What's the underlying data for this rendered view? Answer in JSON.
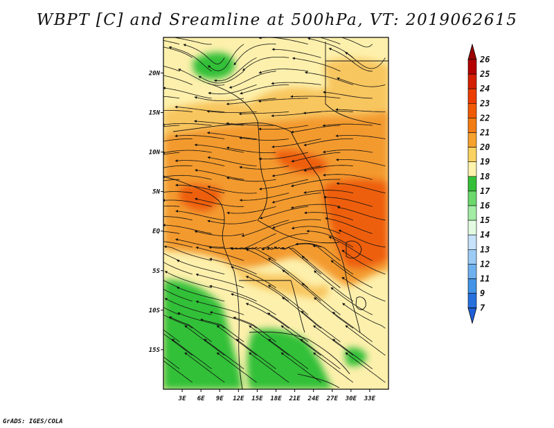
{
  "title": "WBPT [C] and Sreamline at 500hPa, VT: 2019062615",
  "credit": "GrADS: IGES/COLA",
  "map": {
    "lon_range": [
      0,
      36
    ],
    "lat_range": [
      -20,
      24.5
    ],
    "lon_ticks": [
      "3E",
      "6E",
      "9E",
      "12E",
      "15E",
      "18E",
      "21E",
      "24E",
      "27E",
      "30E",
      "33E"
    ],
    "lat_ticks": [
      "20N",
      "15N",
      "10N",
      "5N",
      "EQ",
      "5S",
      "10S",
      "15S"
    ],
    "fill_field": "WBPT [C]",
    "overlay": "Streamline",
    "level": "500hPa",
    "valid_time": "2019062615"
  },
  "colorbar": {
    "labels": [
      "26",
      "25",
      "24",
      "23",
      "22",
      "21",
      "20",
      "19",
      "18",
      "17",
      "16",
      "15",
      "14",
      "13",
      "12",
      "11",
      "9",
      "7"
    ],
    "colors": [
      "#b50000",
      "#d42000",
      "#ec3c00",
      "#f15a05",
      "#f37c12",
      "#f6a02e",
      "#fad262",
      "#fdf3ad",
      "#33c038",
      "#6bd86c",
      "#a2ecA4",
      "#e2fbe2",
      "#c6e2fa",
      "#9ccbf5",
      "#6fb1ee",
      "#4393e6",
      "#2770de"
    ],
    "top_arrow_color": "#9a0000",
    "bottom_arrow_color": "#1f5fd8"
  },
  "colors": {
    "orange_dark": "#ee5f0f",
    "orange": "#f39a2f",
    "orange_light": "#f8c65e",
    "yellow": "#fdf0ac",
    "green": "#33c038",
    "green_light": "#6bd86c"
  }
}
